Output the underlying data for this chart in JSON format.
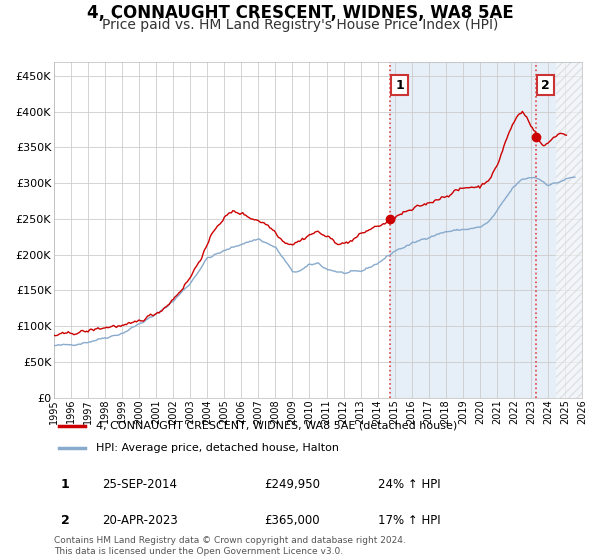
{
  "title": "4, CONNAUGHT CRESCENT, WIDNES, WA8 5AE",
  "subtitle": "Price paid vs. HM Land Registry's House Price Index (HPI)",
  "title_fontsize": 12,
  "subtitle_fontsize": 10,
  "ytick_values": [
    0,
    50000,
    100000,
    150000,
    200000,
    250000,
    300000,
    350000,
    400000,
    450000
  ],
  "ylim": [
    0,
    470000
  ],
  "xlim_start": 1995.0,
  "xlim_end": 2026.0,
  "background_color": "#ffffff",
  "plot_bg_color": "#ffffff",
  "grid_color": "#cccccc",
  "red_color": "#cc0000",
  "blue_color": "#88aacc",
  "shade_color": "#dce8f5",
  "hatch_color": "#cccccc",
  "vline_color": "#dd4444",
  "vline_style": ":",
  "marker1_date": 2014.73,
  "marker2_date": 2023.3,
  "sale1_price": 249950,
  "sale2_price": 365000,
  "legend_label_red": "4, CONNAUGHT CRESCENT, WIDNES, WA8 5AE (detached house)",
  "legend_label_blue": "HPI: Average price, detached house, Halton",
  "table_row1": [
    "1",
    "25-SEP-2014",
    "£249,950",
    "24% ↑ HPI"
  ],
  "table_row2": [
    "2",
    "20-APR-2023",
    "£365,000",
    "17% ↑ HPI"
  ],
  "footer": "Contains HM Land Registry data © Crown copyright and database right 2024.\nThis data is licensed under the Open Government Licence v3.0.",
  "xtick_years": [
    1995,
    1996,
    1997,
    1998,
    1999,
    2000,
    2001,
    2002,
    2003,
    2004,
    2005,
    2006,
    2007,
    2008,
    2009,
    2010,
    2011,
    2012,
    2013,
    2014,
    2015,
    2016,
    2017,
    2018,
    2019,
    2020,
    2021,
    2022,
    2023,
    2024,
    2025,
    2026
  ]
}
